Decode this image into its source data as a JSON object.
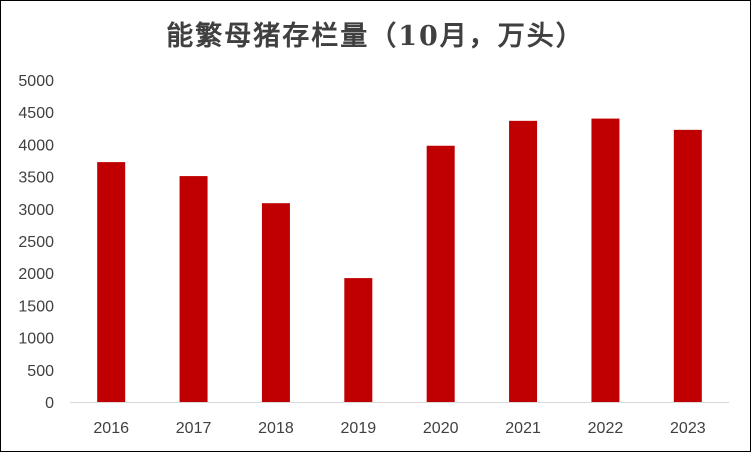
{
  "chart_data": {
    "type": "bar",
    "title": "能繁母猪存栏量（10月，万头）",
    "categories": [
      "2016",
      "2017",
      "2018",
      "2019",
      "2020",
      "2021",
      "2022",
      "2023"
    ],
    "values": [
      3725,
      3508,
      3087,
      1924,
      3979,
      4366,
      4401,
      4226
    ],
    "ylim": [
      0,
      5000
    ],
    "yticks": [
      "0",
      "500",
      "1000",
      "1500",
      "2000",
      "2500",
      "3000",
      "3500",
      "4000",
      "4500",
      "5000"
    ],
    "xlabel": "",
    "ylabel": "",
    "grid": false,
    "bar_color": "#C00000",
    "axis_color": "#D9D9D9"
  }
}
